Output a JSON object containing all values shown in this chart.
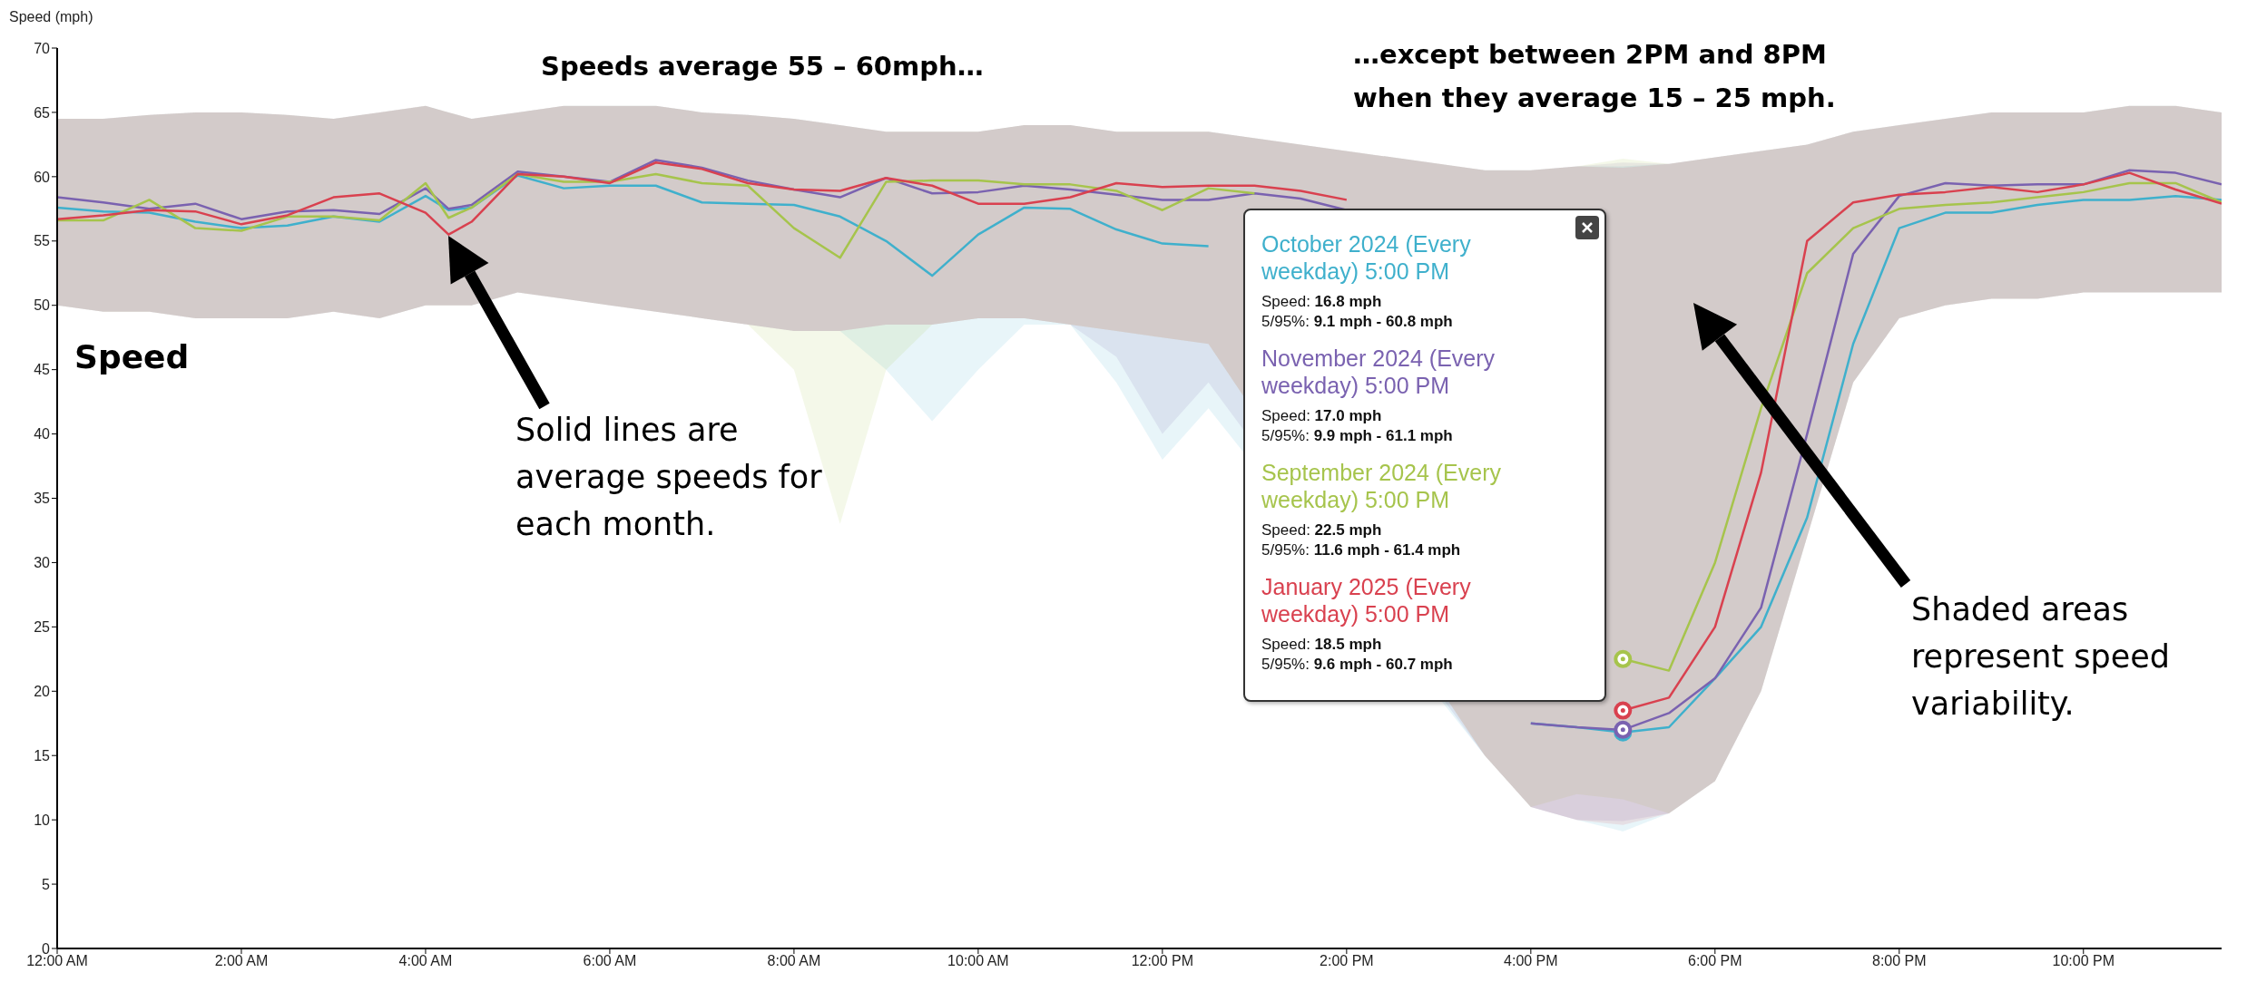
{
  "chart_data": {
    "type": "line",
    "ylabel": "Speed (mph)",
    "xlim": [
      0,
      23.5
    ],
    "ylim": [
      0,
      70
    ],
    "xticks": [
      {
        "value": 0,
        "label": "12:00 AM"
      },
      {
        "value": 2,
        "label": "2:00 AM"
      },
      {
        "value": 4,
        "label": "4:00 AM"
      },
      {
        "value": 6,
        "label": "6:00 AM"
      },
      {
        "value": 8,
        "label": "8:00 AM"
      },
      {
        "value": 10,
        "label": "10:00 AM"
      },
      {
        "value": 12,
        "label": "12:00 PM"
      },
      {
        "value": 14,
        "label": "2:00 PM"
      },
      {
        "value": 16,
        "label": "4:00 PM"
      },
      {
        "value": 18,
        "label": "6:00 PM"
      },
      {
        "value": 20,
        "label": "8:00 PM"
      },
      {
        "value": 22,
        "label": "10:00 PM"
      }
    ],
    "yticks": [
      0,
      5,
      10,
      15,
      20,
      25,
      30,
      35,
      40,
      45,
      50,
      55,
      60,
      65,
      70
    ],
    "marker": "none",
    "line_style": "solid",
    "x": [
      0,
      0.5,
      1,
      1.5,
      2,
      2.5,
      3,
      3.5,
      4,
      4.25,
      4.5,
      5,
      5.5,
      6,
      6.5,
      7,
      7.5,
      8,
      8.5,
      9,
      9.5,
      10,
      10.5,
      11,
      11.5,
      12,
      12.5,
      13,
      13.5,
      14,
      14.5,
      15,
      15.5,
      16,
      16.5,
      17,
      17.5,
      18,
      18.5,
      19,
      19.5,
      20,
      20.5,
      21,
      21.5,
      22,
      22.5,
      23,
      23.5
    ],
    "series": [
      {
        "name": "October 2024 (Every weekday) 5:00 PM",
        "color": "#3fb0cc",
        "values": [
          57.6,
          57.3,
          57.2,
          56.5,
          56.0,
          56.2,
          56.9,
          56.5,
          58.5,
          57.4,
          57.6,
          60.1,
          59.1,
          59.3,
          59.3,
          58.0,
          57.9,
          57.8,
          56.9,
          55.0,
          52.3,
          55.5,
          57.6,
          57.5,
          55.9,
          54.8,
          54.6,
          null,
          null,
          null,
          null,
          null,
          null,
          17.5,
          17.2,
          16.8,
          17.2,
          21,
          25,
          33.5,
          47,
          56,
          57.2,
          57.2,
          57.8,
          58.2,
          58.2,
          58.5,
          58.2
        ],
        "lower": [
          50,
          49.5,
          49.5,
          49,
          49,
          49,
          49.5,
          49,
          50,
          50,
          50,
          51,
          50.5,
          50,
          49.5,
          49,
          48.5,
          48,
          48,
          45,
          41,
          45,
          48.5,
          48.5,
          44,
          38,
          42,
          null,
          null,
          null,
          null,
          null,
          15,
          11,
          10,
          9.1,
          10.5,
          13,
          20,
          32,
          44,
          49,
          50,
          50.5,
          50.5,
          51,
          51,
          51,
          51
        ],
        "upper": [
          64.5,
          64.5,
          64.8,
          65,
          65,
          64.8,
          64.5,
          65,
          65.5,
          65,
          64.5,
          65,
          65.5,
          65.5,
          65.5,
          65,
          64.8,
          64.5,
          64,
          63.5,
          63.5,
          63.5,
          64,
          64,
          63.5,
          63.5,
          63.5,
          null,
          null,
          null,
          null,
          null,
          60.5,
          60.5,
          60.8,
          60.8,
          61,
          61.5,
          62,
          62.5,
          63.5,
          64,
          64.5,
          65,
          65,
          65,
          65.5,
          65.5,
          65
        ]
      },
      {
        "name": "November 2024 (Every weekday) 5:00 PM",
        "color": "#7a62b0",
        "values": [
          58.4,
          58.0,
          57.5,
          57.9,
          56.7,
          57.3,
          57.4,
          57.1,
          59.1,
          57.5,
          57.8,
          60.4,
          60.0,
          59.6,
          61.3,
          60.7,
          59.7,
          59.0,
          58.4,
          59.9,
          58.7,
          58.8,
          59.3,
          59.0,
          58.6,
          58.2,
          58.2,
          58.7,
          58.3,
          57.4,
          null,
          null,
          null,
          17.5,
          17.2,
          17.0,
          18.3,
          21,
          26.5,
          40,
          54,
          58.5,
          59.5,
          59.3,
          59.4,
          59.4,
          60.5,
          60.3,
          59.4
        ],
        "lower": [
          50,
          49.5,
          49.5,
          49,
          49,
          49,
          49.5,
          49,
          50,
          50,
          50,
          51,
          50.5,
          50,
          49.5,
          49,
          48.5,
          48,
          48,
          48.5,
          48.5,
          49,
          49,
          48.5,
          46,
          40,
          44,
          null,
          null,
          null,
          null,
          null,
          15,
          11,
          10,
          9.9,
          10.5,
          13,
          20,
          32,
          44,
          49,
          50,
          50.5,
          50.5,
          51,
          51,
          51,
          51
        ],
        "upper": [
          64.5,
          64.5,
          64.8,
          65,
          65,
          64.8,
          64.5,
          65,
          65.5,
          65,
          64.5,
          65,
          65.5,
          65.5,
          65.5,
          65,
          64.8,
          64.5,
          64,
          63.5,
          63.5,
          63.5,
          64,
          64,
          63.5,
          63.5,
          63.5,
          null,
          null,
          null,
          null,
          null,
          60.5,
          60.5,
          60.8,
          61.1,
          61,
          61.5,
          62,
          62.5,
          63.5,
          64,
          64.5,
          65,
          65,
          65,
          65.5,
          65.5,
          65
        ]
      },
      {
        "name": "September 2024 (Every weekday) 5:00 PM",
        "color": "#a6c44c",
        "values": [
          56.6,
          56.6,
          58.2,
          56.0,
          55.8,
          56.9,
          56.9,
          56.6,
          59.5,
          56.8,
          57.6,
          60.2,
          59.6,
          59.6,
          60.2,
          59.5,
          59.3,
          56.0,
          53.7,
          59.6,
          59.7,
          59.7,
          59.4,
          59.4,
          58.9,
          57.4,
          59.1,
          58.7,
          null,
          null,
          null,
          null,
          null,
          null,
          null,
          22.5,
          21.6,
          30,
          42,
          52.5,
          56,
          57.5,
          57.8,
          58,
          58.4,
          58.8,
          59.5,
          59.5,
          58
        ],
        "lower": [
          50,
          49.5,
          49.5,
          49,
          49,
          49,
          49.5,
          49,
          50,
          50,
          50,
          51,
          50.5,
          50,
          49.5,
          49,
          48.5,
          45,
          33,
          45,
          48.5,
          49,
          49,
          48.5,
          48,
          47.5,
          47,
          null,
          null,
          null,
          null,
          null,
          15,
          11,
          12,
          11.6,
          10.5,
          13,
          20,
          32,
          44,
          49,
          50,
          50.5,
          50.5,
          51,
          51,
          51,
          51
        ],
        "upper": [
          64.5,
          64.5,
          64.8,
          65,
          65,
          64.8,
          64.5,
          65,
          65.5,
          65,
          64.5,
          65,
          65.5,
          65.5,
          65.5,
          65,
          64.8,
          64.5,
          64,
          63.5,
          63.5,
          63.5,
          64,
          64,
          63.5,
          63.5,
          63.5,
          null,
          null,
          null,
          null,
          null,
          60.5,
          60.5,
          60.8,
          61.4,
          61,
          61.5,
          62,
          62.5,
          63.5,
          64,
          64.5,
          65,
          65,
          65,
          65.5,
          65.5,
          65
        ]
      },
      {
        "name": "January 2025 (Every weekday) 5:00 PM",
        "color": "#d9414f",
        "values": [
          56.7,
          57.0,
          57.4,
          57.3,
          56.3,
          57.0,
          58.4,
          58.7,
          57.2,
          55.5,
          56.5,
          60.2,
          60.0,
          59.5,
          61.1,
          60.6,
          59.5,
          59.0,
          58.9,
          59.9,
          59.3,
          57.9,
          57.9,
          58.4,
          59.5,
          59.2,
          59.3,
          59.3,
          58.9,
          58.2,
          null,
          null,
          null,
          null,
          null,
          18.5,
          19.5,
          25,
          37,
          55,
          58,
          58.6,
          58.8,
          59.2,
          58.8,
          59.4,
          60.3,
          59,
          57.9
        ],
        "lower": [
          50,
          49.5,
          49.5,
          49,
          49,
          49,
          49.5,
          49,
          50,
          50,
          50,
          51,
          50.5,
          50,
          49.5,
          49,
          48.5,
          48,
          48,
          48.5,
          48.5,
          49,
          49,
          48.5,
          48,
          47.5,
          47,
          null,
          null,
          null,
          null,
          null,
          15,
          11,
          10,
          9.6,
          10.5,
          13,
          20,
          32,
          44,
          49,
          50,
          50.5,
          50.5,
          51,
          51,
          51,
          51
        ],
        "upper": [
          64.5,
          64.5,
          64.8,
          65,
          65,
          64.8,
          64.5,
          65,
          65.5,
          65,
          64.5,
          65,
          65.5,
          65.5,
          65.5,
          65,
          64.8,
          64.5,
          64,
          63.5,
          63.5,
          63.5,
          64,
          64,
          63.5,
          63.5,
          63.5,
          null,
          null,
          null,
          null,
          null,
          60.5,
          60.5,
          60.8,
          60.7,
          61,
          61.5,
          62,
          62.5,
          63.5,
          64,
          64.5,
          65,
          65,
          65,
          65.5,
          65.5,
          65
        ]
      },
      {
        "type": "scatter",
        "marker": "circle",
        "color": "#3fb0cc",
        "values": [
          null,
          null,
          null,
          null,
          null,
          null,
          null,
          null,
          null,
          null,
          null,
          null,
          null,
          null,
          null,
          null,
          null,
          null,
          null,
          null,
          null,
          null,
          null,
          null,
          null,
          null,
          null,
          null,
          null,
          null,
          null,
          null,
          null,
          null,
          null,
          16.8,
          null,
          null,
          null,
          null,
          null,
          null,
          null,
          null,
          null,
          null,
          null,
          null,
          null
        ]
      },
      {
        "type": "scatter",
        "marker": "circle",
        "color": "#7a62b0",
        "values": [
          null,
          null,
          null,
          null,
          null,
          null,
          null,
          null,
          null,
          null,
          null,
          null,
          null,
          null,
          null,
          null,
          null,
          null,
          null,
          null,
          null,
          null,
          null,
          null,
          null,
          null,
          null,
          null,
          null,
          null,
          null,
          null,
          null,
          null,
          null,
          17.0,
          null,
          null,
          null,
          null,
          null,
          null,
          null,
          null,
          null,
          null,
          null,
          null,
          null
        ]
      },
      {
        "type": "scatter",
        "marker": "circle",
        "color": "#a6c44c",
        "values": [
          null,
          null,
          null,
          null,
          null,
          null,
          null,
          null,
          null,
          null,
          null,
          null,
          null,
          null,
          null,
          null,
          null,
          null,
          null,
          null,
          null,
          null,
          null,
          null,
          null,
          null,
          null,
          null,
          null,
          null,
          null,
          null,
          null,
          null,
          null,
          22.5,
          null,
          null,
          null,
          null,
          null,
          null,
          null,
          null,
          null,
          null,
          null,
          null,
          null
        ]
      },
      {
        "type": "scatter",
        "marker": "circle",
        "color": "#d9414f",
        "values": [
          null,
          null,
          null,
          null,
          null,
          null,
          null,
          null,
          null,
          null,
          null,
          null,
          null,
          null,
          null,
          null,
          null,
          null,
          null,
          null,
          null,
          null,
          null,
          null,
          null,
          null,
          null,
          null,
          null,
          null,
          null,
          null,
          null,
          null,
          null,
          18.5,
          null,
          null,
          null,
          null,
          null,
          null,
          null,
          null,
          null,
          null,
          null,
          null,
          null
        ]
      }
    ],
    "annotations": [
      "Speeds average 55 – 60mph…",
      "…except between 2PM and 8PM when they average 15 – 25 mph.",
      "Speed",
      "Solid lines are average speeds for each month.",
      "Shaded areas represent speed variability.",
      "Speed: 16.8 mph",
      "5/95%: 9.1 mph - 60.8 mph",
      "Speed: 17.0 mph",
      "5/95%: 9.9 mph - 61.1 mph",
      "Speed: 22.5 mph",
      "5/95%: 11.6 mph - 61.4 mph",
      "Speed: 18.5 mph",
      "5/95%: 9.6 mph - 60.7 mph"
    ]
  }
}
